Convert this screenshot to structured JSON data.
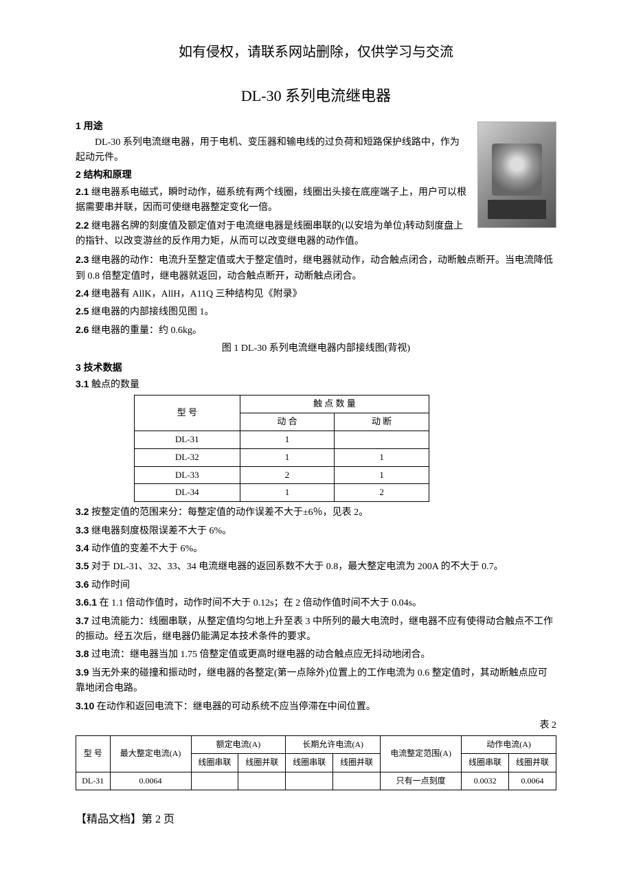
{
  "header_notice": "如有侵权，请联系网站删除，仅供学习与交流",
  "main_title": "DL-30 系列电流继电器",
  "section1": {
    "title": "1 用途",
    "body": "DL-30 系列电流继电器，用于电机、变压器和输电线的过负荷和短路保护线路中，作为起动元件。"
  },
  "section2": {
    "title": "2 结构和原理",
    "items": {
      "p21_num": "2.1",
      "p21": " 继电器系电磁式，瞬时动作，磁系统有两个线圈，线圈出头接在底座端子上，用户可以根据需要串并联，因而可使继电器整定变化一倍。",
      "p22_num": "2.2",
      "p22": " 继电器名牌的刻度值及额定值对于电流继电器是线圈串联的(以安培为单位)转动刻度盘上的指针、以改变游丝的反作用力矩，从而可以改变继电器的动作值。",
      "p23_num": "2.3",
      "p23": " 继电器的动作：电流升至整定值或大于整定值时，继电器就动作，动合触点闭合，动断触点断开。当电流降低到 0.8 倍整定值时，继电器就返回，动合触点断开，动断触点闭合。",
      "p24_num": "2.4",
      "p24": " 继电器有 AllK，AllH，A11Q 三种结构见《附录》",
      "p25_num": "2.5",
      "p25": " 继电器的内部接线图见图 1。",
      "p26_num": "2.6",
      "p26": " 继电器的重量：约 0.6kg。"
    }
  },
  "fig1_caption": "图 1    DL-30 系列电流继电器内部接线图(背视)",
  "section3": {
    "title": "3 技术数据",
    "p31_num": "3.1",
    "p31": " 触点的数量",
    "table1": {
      "col_model": "型  号",
      "col_qty": "触 点 数 量",
      "col_nc": "动  合",
      "col_no": "动  断",
      "rows": [
        {
          "model": "DL-31",
          "nc": "1",
          "no": ""
        },
        {
          "model": "DL-32",
          "nc": "1",
          "no": "1"
        },
        {
          "model": "DL-33",
          "nc": "2",
          "no": "1"
        },
        {
          "model": "DL-34",
          "nc": "1",
          "no": "2"
        }
      ]
    },
    "p32_num": "3.2",
    "p32": " 按整定值的范围来分：每整定值的动作误差不大于±6％，见表 2。",
    "p33_num": "3.3",
    "p33": " 继电器刻度极限误差不大于 6%。",
    "p34_num": "3.4",
    "p34": " 动作值的变差不大于 6%。",
    "p35_num": "3.5",
    "p35": " 对于 DL-31、32、33、34 电流继电器的返回系数不大于 0.8，最大整定电流为 200A 的不大于 0.7。",
    "p36_num": "3.6",
    "p36": " 动作时间",
    "p361_num": "3.6.1",
    "p361": " 在 1.1 倍动作值时，动作时间不大于 0.12s；在 2 倍动作值时间不大于 0.04s。",
    "p37_num": "3.7",
    "p37": " 过电流能力：线圈串联，从整定值均匀地上升至表 3 中所列的最大电流时，继电器不应有使得动合触点不工作的振动。经五次后，继电器仍能满足本技术条件的要求。",
    "p38_num": "3.8",
    "p38": " 过电流：继电器当加 1.75 倍整定值或更高时继电器的动合触点应无抖动地闭合。",
    "p39_num": "3.9",
    "p39": " 当无外来的碰撞和振动时，继电器的各整定(第一点除外)位置上的工作电流为 0.6 整定值时，其动断触点应可靠地闭合电路。",
    "p310_num": "3.10",
    "p310": " 在动作和返回电流下：继电器的可动系统不应当停滞在中间位置。"
  },
  "table2_label": "表 2",
  "table2": {
    "headers": {
      "model": "型  号",
      "max_set": "最大整定电流(A)",
      "rated": "额定电流(A)",
      "long_term": "长期允许电流(A)",
      "range": "电流整定范围(A)",
      "action": "动作电流(A)",
      "coil_series": "线圈串联",
      "coil_parallel": "线圈并联"
    },
    "row": {
      "model": "DL-31",
      "max_set": "0.0064",
      "rated_s": "",
      "rated_p": "",
      "lt_s": "",
      "lt_p": "",
      "range": "只有一点刻度",
      "action_s": "0.0032",
      "action_p": "0.0064"
    }
  },
  "footer": "【精品文档】第 2 页"
}
